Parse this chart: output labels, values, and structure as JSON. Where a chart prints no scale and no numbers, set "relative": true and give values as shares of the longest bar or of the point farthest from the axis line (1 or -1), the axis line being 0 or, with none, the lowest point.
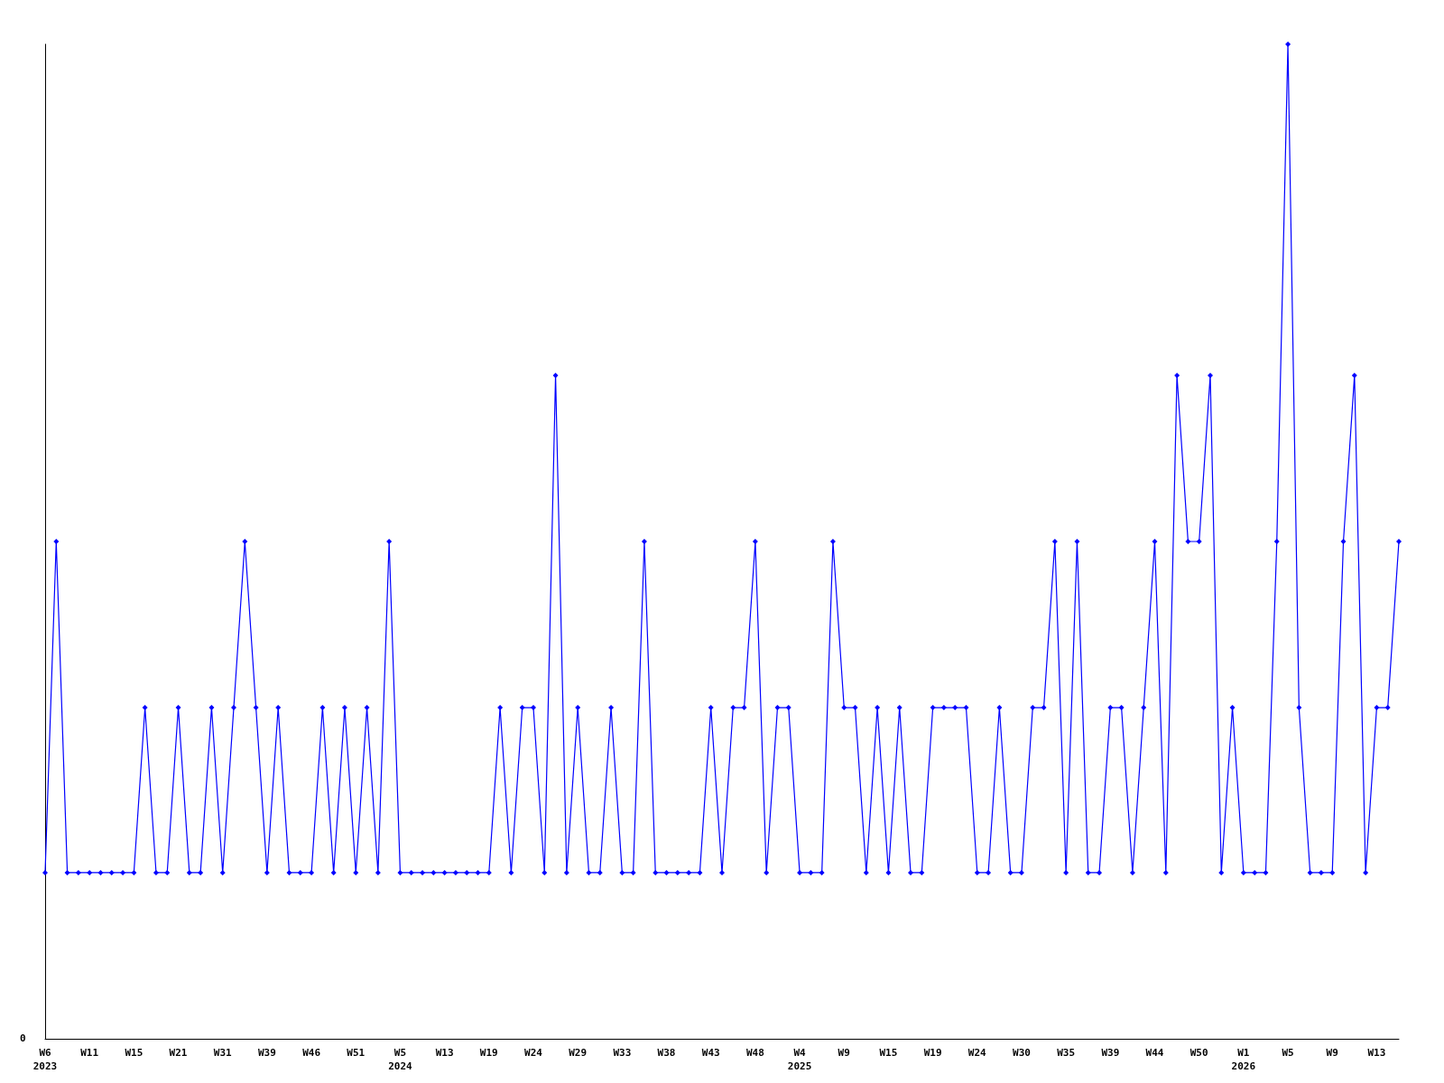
{
  "chart_data": {
    "type": "line",
    "relative": true,
    "annotations": [
      "0"
    ],
    "marker": "diamond",
    "categories": [
      "W6\n2023",
      null,
      null,
      null,
      "W11",
      null,
      null,
      null,
      "W15",
      null,
      null,
      null,
      "W21",
      null,
      null,
      null,
      "W31",
      null,
      null,
      null,
      "W39",
      null,
      null,
      null,
      "W46",
      null,
      null,
      null,
      "W51",
      null,
      null,
      null,
      "W5\n2024",
      null,
      null,
      null,
      "W13",
      null,
      null,
      null,
      "W19",
      null,
      null,
      null,
      "W24",
      null,
      null,
      null,
      "W29",
      null,
      null,
      null,
      "W33",
      null,
      null,
      null,
      "W38",
      null,
      null,
      null,
      "W43",
      null,
      null,
      null,
      "W48",
      null,
      null,
      null,
      "W4\n2025",
      null,
      null,
      null,
      "W9",
      null,
      null,
      null,
      "W15",
      null,
      null,
      null,
      "W19",
      null,
      null,
      null,
      "W24",
      null,
      null,
      null,
      "W30",
      null,
      null,
      null,
      "W35",
      null,
      null,
      null,
      "W39",
      null,
      null,
      null,
      "W44",
      null,
      null,
      null,
      "W50",
      null,
      null,
      null,
      "W1\n2026",
      null,
      null,
      null,
      "W5",
      null,
      null,
      null,
      "W9",
      null,
      null,
      null,
      "W13",
      null,
      null
    ],
    "series": [
      {
        "color": "#0000ff",
        "values": [
          0.167,
          0.5,
          0.167,
          0.167,
          0.167,
          0.167,
          0.167,
          0.167,
          0.167,
          0.333,
          0.167,
          0.167,
          0.333,
          0.167,
          0.167,
          0.333,
          0.167,
          0.333,
          0.5,
          0.333,
          0.167,
          0.333,
          0.167,
          0.167,
          0.167,
          0.333,
          0.167,
          0.333,
          0.167,
          0.333,
          0.167,
          0.5,
          0.167,
          0.167,
          0.167,
          0.167,
          0.167,
          0.167,
          0.167,
          0.167,
          0.167,
          0.333,
          0.167,
          0.333,
          0.333,
          0.167,
          0.667,
          0.167,
          0.333,
          0.167,
          0.167,
          0.333,
          0.167,
          0.167,
          0.5,
          0.167,
          0.167,
          0.167,
          0.167,
          0.167,
          0.333,
          0.167,
          0.333,
          0.333,
          0.5,
          0.167,
          0.333,
          0.333,
          0.167,
          0.167,
          0.167,
          0.5,
          0.333,
          0.333,
          0.167,
          0.333,
          0.167,
          0.333,
          0.167,
          0.167,
          0.333,
          0.333,
          0.333,
          0.333,
          0.167,
          0.167,
          0.333,
          0.167,
          0.167,
          0.333,
          0.333,
          0.5,
          0.167,
          0.5,
          0.167,
          0.167,
          0.333,
          0.333,
          0.167,
          0.333,
          0.5,
          0.167,
          0.667,
          0.5,
          0.5,
          0.667,
          0.167,
          0.333,
          0.167,
          0.167,
          0.167,
          0.5,
          1,
          0.333,
          0.167,
          0.167,
          0.167,
          0.5,
          0.667,
          0.167,
          0.333,
          0.333,
          0.5
        ]
      }
    ]
  }
}
